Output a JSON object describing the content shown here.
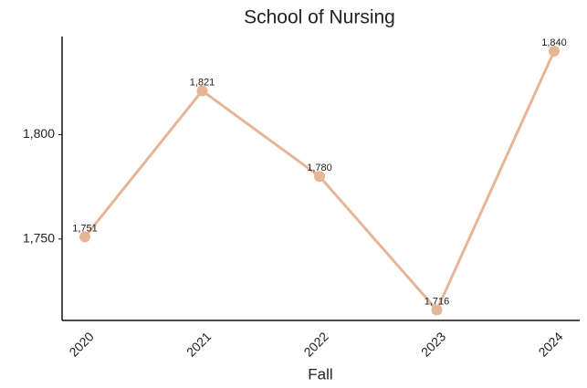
{
  "chart_data": {
    "type": "line",
    "title": "School of Nursing",
    "x_label": "Fall",
    "categories": [
      "2020",
      "2021",
      "2022",
      "2023",
      "2024"
    ],
    "series": [
      {
        "name": "School of Nursing",
        "color": "#e6b596",
        "values": [
          1751,
          1821,
          1780,
          1716,
          1840
        ],
        "value_labels": [
          "1,751",
          "1,821",
          "1,780",
          "1,716",
          "1,840"
        ]
      }
    ],
    "ylim": [
      1711,
      1847
    ],
    "yticks": [
      {
        "value": 1750,
        "label": "1,750"
      },
      {
        "value": 1800,
        "label": "1,800"
      }
    ],
    "grid": false
  }
}
